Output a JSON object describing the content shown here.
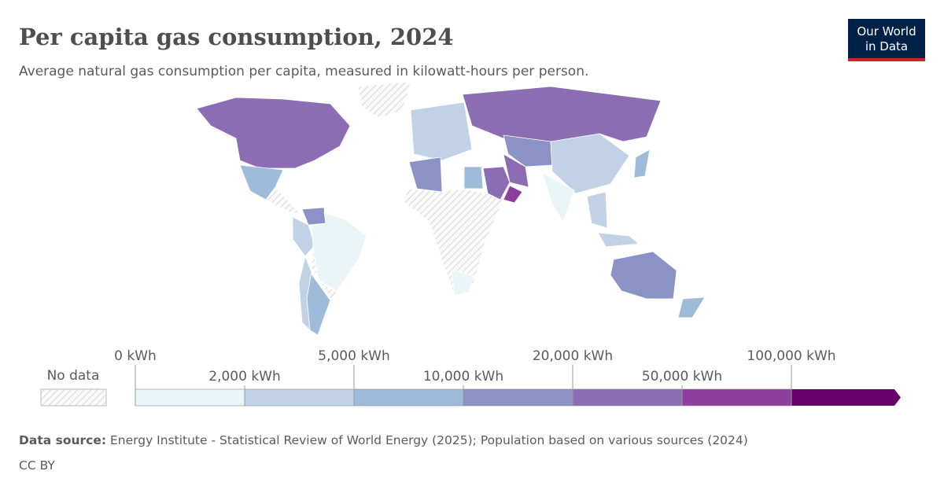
{
  "header": {
    "title": "Per capita gas consumption, 2024",
    "subtitle": "Average natural gas consumption per capita, measured in kilowatt-hours per person.",
    "logo": [
      "Our World",
      "in Data"
    ]
  },
  "legend": {
    "no_data": "No data",
    "ticks": [
      {
        "value": 0,
        "label": "0 kWh"
      },
      {
        "value": 2000,
        "label": "2,000 kWh"
      },
      {
        "value": 5000,
        "label": "5,000 kWh"
      },
      {
        "value": 10000,
        "label": "10,000 kWh"
      },
      {
        "value": 20000,
        "label": "20,000 kWh"
      },
      {
        "value": 50000,
        "label": "50,000 kWh"
      },
      {
        "value": 100000,
        "label": "100,000 kWh"
      }
    ],
    "colors": [
      "#eaf5f7",
      "#c2d2e6",
      "#9ebcd9",
      "#8a92c6",
      "#8c6cb2",
      "#8c3f9c",
      "#6a006a"
    ]
  },
  "footer": {
    "source_label": "Data source:",
    "source": "Energy Institute - Statistical Review of World Energy (2025); Population based on various sources (2024)",
    "license": "CC BY"
  }
}
